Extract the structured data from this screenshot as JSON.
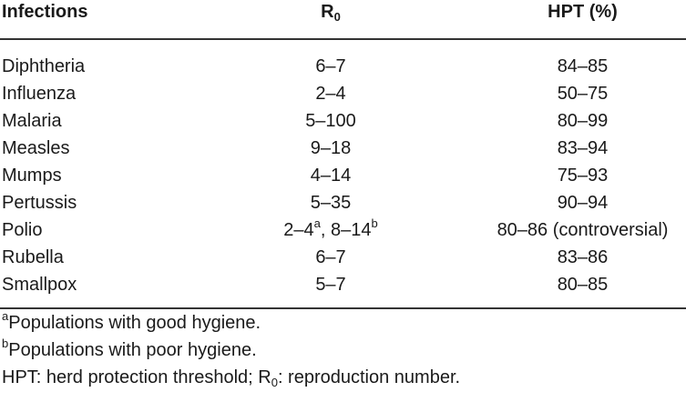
{
  "table": {
    "headers": {
      "infections": "Infections",
      "r0_base": "R",
      "r0_sub": "0",
      "hpt": "HPT (%)"
    },
    "rows": [
      {
        "infection": "Diphtheria",
        "r0": "6–7",
        "hpt": "84–85"
      },
      {
        "infection": "Influenza",
        "r0": "2–4",
        "hpt": "50–75"
      },
      {
        "infection": "Malaria",
        "r0": "5–100",
        "hpt": "80–99"
      },
      {
        "infection": "Measles",
        "r0": "9–18",
        "hpt": "83–94"
      },
      {
        "infection": "Mumps",
        "r0": "4–14",
        "hpt": "75–93"
      },
      {
        "infection": "Pertussis",
        "r0": "5–35",
        "hpt": "90–94"
      },
      {
        "infection": "Polio",
        "r0_part1": "2–4",
        "r0_sup1": "a",
        "r0_sep": ", ",
        "r0_part2": "8–14",
        "r0_sup2": "b",
        "hpt": "80–86 (controversial)"
      },
      {
        "infection": "Rubella",
        "r0": "6–7",
        "hpt": "83–86"
      },
      {
        "infection": "Smallpox",
        "r0": "5–7",
        "hpt": "80–85"
      }
    ]
  },
  "footnotes": {
    "a_mark": "a",
    "a_text": "Populations with good hygiene.",
    "b_mark": "b",
    "b_text": "Populations with poor hygiene.",
    "abbr_part1": "HPT: herd protection threshold; R",
    "abbr_sub": "0",
    "abbr_part2": ": reproduction number."
  }
}
